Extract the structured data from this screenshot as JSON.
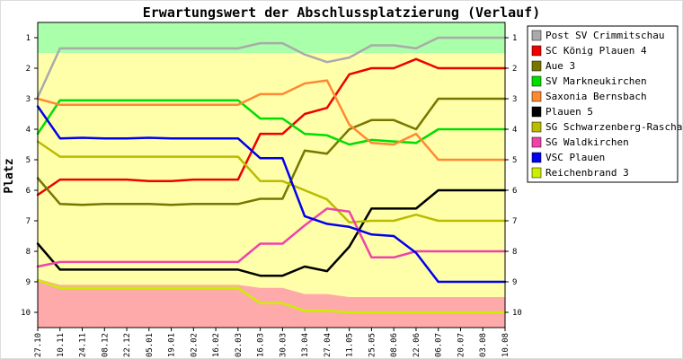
{
  "chart_data": {
    "type": "line",
    "title": "Erwartungswert der Abschlussplatzierung (Verlauf)",
    "xlabel": "",
    "ylabel": "Platz",
    "ylim": [
      0.5,
      10.5
    ],
    "yticks": [
      1,
      2,
      3,
      4,
      5,
      6,
      7,
      8,
      9,
      10
    ],
    "grid": false,
    "legend": "right",
    "x": [
      "27.10",
      "10.11",
      "24.11",
      "08.12",
      "22.12",
      "05.01",
      "19.01",
      "02.02",
      "16.02",
      "02.03",
      "16.03",
      "30.03",
      "13.04",
      "27.04",
      "11.05",
      "25.05",
      "08.06",
      "22.06",
      "06.07",
      "20.07",
      "03.08",
      "10.08"
    ],
    "bands": [
      {
        "label": "promotion",
        "color": "#aaffaa",
        "lower": [
          1.5,
          1.5,
          1.5,
          1.5,
          1.5,
          1.5,
          1.5,
          1.5,
          1.5,
          1.5,
          1.5,
          1.5,
          1.5,
          1.5,
          1.5,
          1.5,
          1.5,
          1.5,
          1.5,
          1.5,
          1.5,
          1.5
        ]
      },
      {
        "label": "middle",
        "color": "#ffffaa"
      },
      {
        "label": "relegation",
        "color": "#ffaaaa",
        "upper": [
          8.9,
          9.1,
          9.1,
          9.1,
          9.1,
          9.1,
          9.1,
          9.1,
          9.1,
          9.1,
          9.2,
          9.2,
          9.4,
          9.4,
          9.5,
          9.5,
          9.5,
          9.5,
          9.5,
          9.5,
          9.5,
          9.5
        ]
      }
    ],
    "series": [
      {
        "name": "Post SV Crimmitschau",
        "color": "#aaaaaa",
        "values": [
          2.95,
          1.35,
          1.35,
          1.35,
          1.35,
          1.35,
          1.35,
          1.35,
          1.35,
          1.35,
          1.18,
          1.18,
          1.55,
          1.8,
          1.65,
          1.25,
          1.25,
          1.35,
          1.0,
          1.0,
          1.0,
          1.0
        ]
      },
      {
        "name": "SC König Plauen 4",
        "color": "#ee0000",
        "values": [
          6.15,
          5.65,
          5.65,
          5.65,
          5.65,
          5.7,
          5.7,
          5.65,
          5.65,
          5.65,
          4.15,
          4.15,
          3.5,
          3.3,
          2.2,
          2.0,
          2.0,
          1.7,
          2.0,
          2.0,
          2.0,
          2.0
        ]
      },
      {
        "name": "Aue 3",
        "color": "#777700",
        "values": [
          5.6,
          6.45,
          6.48,
          6.45,
          6.45,
          6.45,
          6.48,
          6.45,
          6.45,
          6.45,
          6.28,
          6.28,
          4.7,
          4.8,
          4.0,
          3.7,
          3.7,
          4.0,
          3.0,
          3.0,
          3.0,
          3.0
        ]
      },
      {
        "name": "SV Markneukirchen",
        "color": "#00dd00",
        "values": [
          4.15,
          3.05,
          3.05,
          3.05,
          3.05,
          3.05,
          3.05,
          3.05,
          3.05,
          3.05,
          3.65,
          3.65,
          4.15,
          4.2,
          4.5,
          4.35,
          4.4,
          4.45,
          4.0,
          4.0,
          4.0,
          4.0
        ]
      },
      {
        "name": "Saxonia Bernsbach",
        "color": "#ff8833",
        "values": [
          3.0,
          3.2,
          3.2,
          3.2,
          3.2,
          3.2,
          3.2,
          3.2,
          3.2,
          3.2,
          2.85,
          2.85,
          2.5,
          2.4,
          3.85,
          4.45,
          4.5,
          4.15,
          5.0,
          5.0,
          5.0,
          5.0
        ]
      },
      {
        "name": "Plauen 5",
        "color": "#000000",
        "values": [
          7.75,
          8.6,
          8.6,
          8.6,
          8.6,
          8.6,
          8.6,
          8.6,
          8.6,
          8.6,
          8.8,
          8.8,
          8.5,
          8.65,
          7.85,
          6.6,
          6.6,
          6.6,
          6.0,
          6.0,
          6.0,
          6.0
        ]
      },
      {
        "name": "SG Schwarzenberg-Raschau",
        "color": "#bbbb00",
        "values": [
          4.4,
          4.9,
          4.9,
          4.9,
          4.9,
          4.9,
          4.9,
          4.9,
          4.9,
          4.9,
          5.7,
          5.7,
          6.0,
          6.3,
          7.05,
          7.0,
          7.0,
          6.8,
          7.0,
          7.0,
          7.0,
          7.0
        ]
      },
      {
        "name": "SG Waldkirchen",
        "color": "#ee44aa",
        "values": [
          8.5,
          8.35,
          8.35,
          8.35,
          8.35,
          8.35,
          8.35,
          8.35,
          8.35,
          8.35,
          7.75,
          7.75,
          7.15,
          6.6,
          6.7,
          8.2,
          8.2,
          8.0,
          8.0,
          8.0,
          8.0,
          8.0
        ]
      },
      {
        "name": "VSC Plauen",
        "color": "#0000ee",
        "values": [
          3.25,
          4.3,
          4.28,
          4.3,
          4.3,
          4.28,
          4.3,
          4.3,
          4.3,
          4.3,
          4.95,
          4.95,
          6.85,
          7.1,
          7.2,
          7.45,
          7.5,
          8.05,
          9.0,
          9.0,
          9.0,
          9.0
        ]
      },
      {
        "name": "Reichenbrand 3",
        "color": "#ccee00",
        "values": [
          8.95,
          9.2,
          9.2,
          9.2,
          9.2,
          9.2,
          9.2,
          9.2,
          9.2,
          9.2,
          9.7,
          9.7,
          9.95,
          9.95,
          10.0,
          10.0,
          10.0,
          10.0,
          10.0,
          10.0,
          10.0,
          10.0
        ]
      }
    ]
  }
}
